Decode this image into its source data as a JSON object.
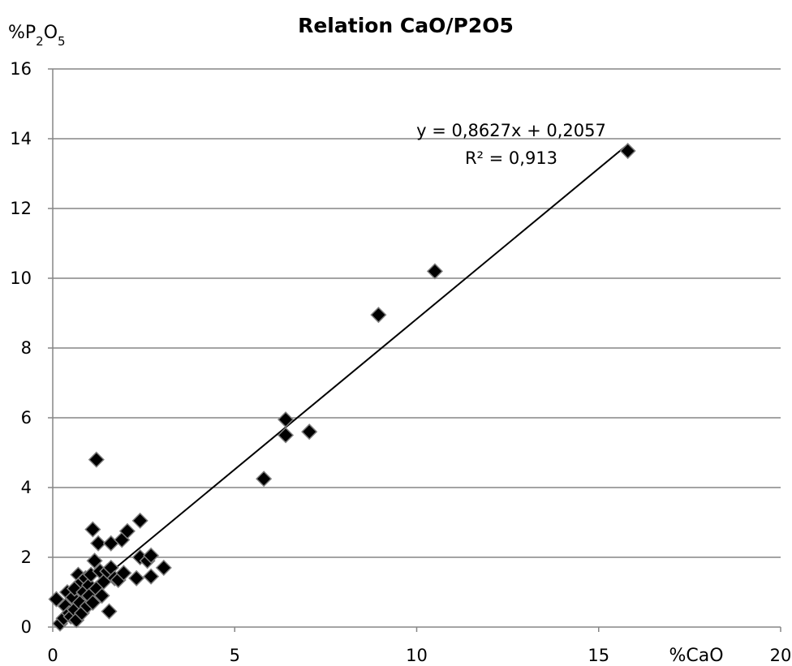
{
  "chart_data": {
    "type": "scatter",
    "title": "Relation CaO/P2O5",
    "xlabel": "%CaO",
    "ylabel_main": "%P",
    "ylabel_sub1": "2",
    "ylabel_mid": "O",
    "ylabel_sub2": "5",
    "xlim": [
      0,
      20
    ],
    "ylim": [
      0,
      16
    ],
    "x_ticks": [
      0,
      5,
      10,
      15,
      20
    ],
    "y_ticks": [
      0,
      2,
      4,
      6,
      8,
      10,
      12,
      14,
      16
    ],
    "grid": "horizontal",
    "marker": "diamond",
    "marker_color": "#000000",
    "trendline": {
      "type": "linear",
      "slope": 0.8627,
      "intercept": 0.2057,
      "x_range": [
        1.5,
        15.8
      ],
      "equation": "y = 0,8627x + 0,2057",
      "r2_label": "R² = 0,913"
    },
    "points": [
      {
        "x": 0.1,
        "y": 0.8
      },
      {
        "x": 0.2,
        "y": 0.1
      },
      {
        "x": 0.3,
        "y": 0.25
      },
      {
        "x": 0.35,
        "y": 0.6
      },
      {
        "x": 0.4,
        "y": 1.0
      },
      {
        "x": 0.45,
        "y": 0.4
      },
      {
        "x": 0.5,
        "y": 0.3
      },
      {
        "x": 0.55,
        "y": 0.85
      },
      {
        "x": 0.6,
        "y": 0.5
      },
      {
        "x": 0.6,
        "y": 1.1
      },
      {
        "x": 0.65,
        "y": 0.2
      },
      {
        "x": 0.7,
        "y": 1.5
      },
      {
        "x": 0.75,
        "y": 0.7
      },
      {
        "x": 0.8,
        "y": 1.3
      },
      {
        "x": 0.8,
        "y": 0.4
      },
      {
        "x": 0.85,
        "y": 1.0
      },
      {
        "x": 0.9,
        "y": 1.4
      },
      {
        "x": 0.95,
        "y": 0.6
      },
      {
        "x": 1.0,
        "y": 1.2
      },
      {
        "x": 1.0,
        "y": 0.9
      },
      {
        "x": 1.05,
        "y": 1.5
      },
      {
        "x": 1.1,
        "y": 0.7
      },
      {
        "x": 1.1,
        "y": 2.8
      },
      {
        "x": 1.15,
        "y": 1.9
      },
      {
        "x": 1.2,
        "y": 4.8
      },
      {
        "x": 1.2,
        "y": 1.1
      },
      {
        "x": 1.25,
        "y": 2.4
      },
      {
        "x": 1.3,
        "y": 1.6
      },
      {
        "x": 1.35,
        "y": 0.9
      },
      {
        "x": 1.4,
        "y": 1.3
      },
      {
        "x": 1.5,
        "y": 1.6
      },
      {
        "x": 1.55,
        "y": 0.45
      },
      {
        "x": 1.6,
        "y": 1.7
      },
      {
        "x": 1.6,
        "y": 2.4
      },
      {
        "x": 1.7,
        "y": 1.4
      },
      {
        "x": 1.8,
        "y": 1.35
      },
      {
        "x": 1.9,
        "y": 2.5
      },
      {
        "x": 1.95,
        "y": 1.55
      },
      {
        "x": 2.05,
        "y": 2.75
      },
      {
        "x": 2.3,
        "y": 1.4
      },
      {
        "x": 2.4,
        "y": 3.05
      },
      {
        "x": 2.4,
        "y": 2.0
      },
      {
        "x": 2.6,
        "y": 1.9
      },
      {
        "x": 2.7,
        "y": 1.45
      },
      {
        "x": 2.7,
        "y": 2.05
      },
      {
        "x": 3.05,
        "y": 1.7
      },
      {
        "x": 5.8,
        "y": 4.25
      },
      {
        "x": 6.4,
        "y": 5.5
      },
      {
        "x": 6.4,
        "y": 5.95
      },
      {
        "x": 7.05,
        "y": 5.6
      },
      {
        "x": 8.95,
        "y": 8.95
      },
      {
        "x": 10.5,
        "y": 10.2
      },
      {
        "x": 15.8,
        "y": 13.65
      }
    ]
  }
}
